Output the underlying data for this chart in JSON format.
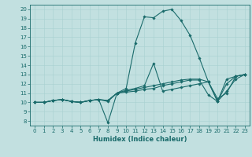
{
  "xlabel": "Humidex (Indice chaleur)",
  "bg_color": "#c2e0e0",
  "line_color": "#1a6b6b",
  "xlim": [
    -0.5,
    23.5
  ],
  "ylim": [
    7.5,
    20.5
  ],
  "xticks": [
    0,
    1,
    2,
    3,
    4,
    5,
    6,
    7,
    8,
    9,
    10,
    11,
    12,
    13,
    14,
    15,
    16,
    17,
    18,
    19,
    20,
    21,
    22,
    23
  ],
  "yticks": [
    8,
    9,
    10,
    11,
    12,
    13,
    14,
    15,
    16,
    17,
    18,
    19,
    20
  ],
  "series": [
    [
      10,
      10,
      10.2,
      10.3,
      10.1,
      10.0,
      10.2,
      10.3,
      7.8,
      11.0,
      11.1,
      11.2,
      11.4,
      11.5,
      11.8,
      12.0,
      12.2,
      12.4,
      12.4,
      10.8,
      10.1,
      12.5,
      12.8,
      13.0
    ],
    [
      10,
      10,
      10.2,
      10.3,
      10.1,
      10.0,
      10.2,
      10.3,
      10.2,
      11.0,
      11.5,
      16.4,
      19.2,
      19.1,
      19.8,
      20.0,
      18.8,
      17.2,
      14.8,
      12.2,
      10.4,
      11.0,
      12.8,
      13.0
    ],
    [
      10,
      10,
      10.2,
      10.3,
      10.1,
      10.0,
      10.2,
      10.3,
      10.1,
      11.0,
      11.3,
      11.5,
      11.8,
      14.2,
      11.2,
      11.4,
      11.6,
      11.8,
      12.0,
      12.2,
      10.1,
      11.2,
      12.5,
      13.0
    ],
    [
      10,
      10,
      10.2,
      10.3,
      10.1,
      10.0,
      10.2,
      10.3,
      10.2,
      11.0,
      11.2,
      11.4,
      11.6,
      11.8,
      12.0,
      12.2,
      12.4,
      12.5,
      12.5,
      12.2,
      10.1,
      12.0,
      12.8,
      13.0
    ]
  ],
  "tick_fontsize": 5.0,
  "xlabel_fontsize": 6.0
}
